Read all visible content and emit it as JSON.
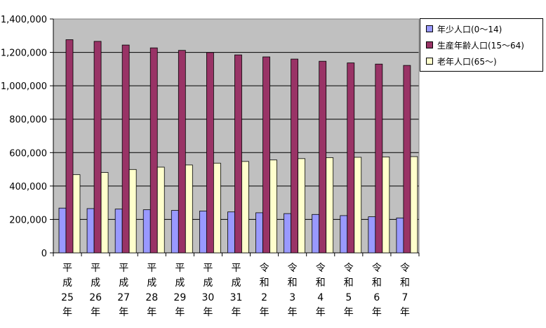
{
  "chart_data": {
    "type": "bar",
    "categories": [
      [
        "平",
        "成",
        "25",
        "年"
      ],
      [
        "平",
        "成",
        "26",
        "年"
      ],
      [
        "平",
        "成",
        "27",
        "年"
      ],
      [
        "平",
        "成",
        "28",
        "年"
      ],
      [
        "平",
        "成",
        "29",
        "年"
      ],
      [
        "平",
        "成",
        "30",
        "年"
      ],
      [
        "平",
        "成",
        "31",
        "年"
      ],
      [
        "令",
        "和",
        "2",
        "年"
      ],
      [
        "令",
        "和",
        "3",
        "年"
      ],
      [
        "令",
        "和",
        "4",
        "年"
      ],
      [
        "令",
        "和",
        "5",
        "年"
      ],
      [
        "令",
        "和",
        "6",
        "年"
      ],
      [
        "令",
        "和",
        "7",
        "年"
      ]
    ],
    "series": [
      {
        "name": "年少人口(0～14)",
        "color": "#9999ff",
        "values": [
          268000,
          265000,
          262000,
          258000,
          254000,
          250000,
          245000,
          240000,
          235000,
          230000,
          223000,
          216000,
          209000
        ]
      },
      {
        "name": "生産年齢人口(15～64)",
        "color": "#993366",
        "values": [
          1276000,
          1266000,
          1244000,
          1227000,
          1212000,
          1199000,
          1185000,
          1173000,
          1160000,
          1147000,
          1137000,
          1130000,
          1122000
        ]
      },
      {
        "name": "老年人口(65～)",
        "color": "#ffffcc",
        "values": [
          468000,
          481000,
          499000,
          513000,
          526000,
          537000,
          547000,
          556000,
          564000,
          570000,
          572000,
          574000,
          576000
        ]
      }
    ],
    "ylim": [
      0,
      1400000
    ],
    "yticks": [
      "0",
      "200,000",
      "400,000",
      "600,000",
      "800,000",
      "1,000,000",
      "1,200,000",
      "1,400,000"
    ],
    "ytick_values": [
      0,
      200000,
      400000,
      600000,
      800000,
      1000000,
      1200000,
      1400000
    ],
    "grid": true,
    "legend_position": "right",
    "plot_background": "#c0c0c0"
  }
}
